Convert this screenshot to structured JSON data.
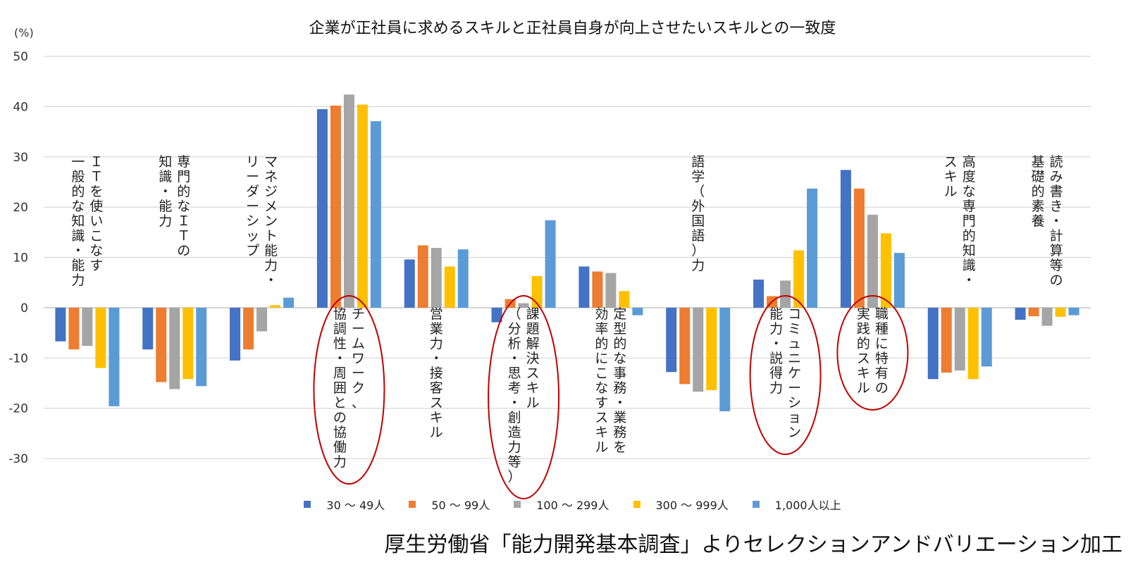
{
  "chart_data": {
    "type": "bar",
    "title": "企業が正社員に求めるスキルと正社員自身が向上させたいスキルとの一致度",
    "y_unit": "(%)",
    "ylim": [
      -30,
      50
    ],
    "yticks": [
      50,
      40,
      30,
      20,
      10,
      0,
      -10,
      -20,
      -30
    ],
    "grid": true,
    "legend_position": "bottom",
    "categories": [
      "ＩＴを使いこなす一般的な知識・能力",
      "専門的なＩＴの知識・能力",
      "マネジメント能力・リーダーシップ",
      "チームワーク、協調性・周囲との協働力",
      "営業力・接客スキル",
      "課題解決スキル（分析・思考・創造力等）",
      "定型的な事務・業務を効率的にこなすスキル",
      "語学（外国語）力",
      "コミュニケーション能力・説得力",
      "職種に特有の実践的スキル",
      "高度な専門的知識・スキル",
      "読み書き・計算等の基礎的素養"
    ],
    "category_label_lines": [
      [
        "ＩＴを使いこなす",
        "一般的な知識・能力"
      ],
      [
        "専門的なＩＴの",
        "知識・能力"
      ],
      [
        "マネジメント能力・",
        "リーダーシップ"
      ],
      [
        "チームワーク、",
        "協調性・周囲との協働力"
      ],
      [
        "営業力・接客スキル"
      ],
      [
        "課題解決スキル",
        "（分析・思考・創造力等）"
      ],
      [
        "定型的な事務・業務を",
        "効率的にこなすスキル"
      ],
      [
        "語学（外国語）力"
      ],
      [
        "コミュニケーション",
        "能力・説得力"
      ],
      [
        "職種に特有の",
        "実践的スキル"
      ],
      [
        "高度な専門的知識・",
        "スキル"
      ],
      [
        "読み書き・計算等の",
        "基礎的素養"
      ]
    ],
    "label_side": [
      "above",
      "above",
      "above",
      "below",
      "below",
      "below",
      "below",
      "above",
      "below",
      "below",
      "above",
      "above"
    ],
    "highlighted": [
      false,
      false,
      false,
      true,
      false,
      true,
      false,
      false,
      true,
      true,
      false,
      false
    ],
    "highlight_color": "#c00000",
    "series": [
      {
        "name": "30 ～ 49人",
        "color": "#4472c4",
        "values": [
          -6.7,
          -8.3,
          -10.5,
          39.5,
          9.6,
          -2.9,
          8.2,
          -12.8,
          5.6,
          27.4,
          -14.2,
          -2.4
        ]
      },
      {
        "name": "50 ～ 99人",
        "color": "#ed7d31",
        "values": [
          -8.3,
          -14.8,
          -8.3,
          40.2,
          12.4,
          1.7,
          7.2,
          -15.2,
          2.3,
          23.7,
          -12.9,
          -1.7
        ]
      },
      {
        "name": "100 ～ 299人",
        "color": "#a5a5a5",
        "values": [
          -7.6,
          -16.2,
          -4.7,
          42.4,
          11.9,
          0.9,
          6.9,
          -16.7,
          5.4,
          18.5,
          -12.5,
          -3.6
        ]
      },
      {
        "name": "300 ～ 999人",
        "color": "#ffc000",
        "values": [
          -12.0,
          -14.2,
          0.5,
          40.4,
          8.2,
          6.3,
          3.3,
          -16.4,
          11.4,
          14.8,
          -14.2,
          -1.8
        ]
      },
      {
        "name": "1,000人以上",
        "color": "#5b9bd5",
        "values": [
          -19.6,
          -15.6,
          2.0,
          37.1,
          11.6,
          17.4,
          -1.5,
          -20.6,
          23.7,
          10.9,
          -11.7,
          -1.5
        ]
      }
    ]
  },
  "source_note": "厚生労働省「能力開発基本調査」よりセレクションアンドバリエーション加工"
}
